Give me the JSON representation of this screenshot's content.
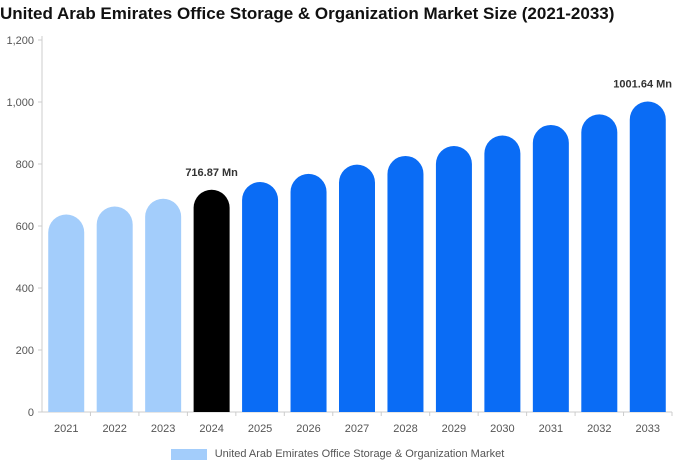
{
  "title": "United Arab Emirates Office Storage & Organization Market Size (2021-2033)",
  "colors": {
    "historical": "#a3cdfb",
    "current": "#000000",
    "forecast": "#0a6cf5",
    "axis": "#cccccc",
    "grid": "#eeeeee"
  },
  "legend_label": "United Arab Emirates Office Storage & Organization Market",
  "chart_data": {
    "type": "bar",
    "title": "United Arab Emirates Office Storage & Organization Market Size (2021-2033)",
    "categories": [
      "2021",
      "2022",
      "2023",
      "2024",
      "2025",
      "2026",
      "2027",
      "2028",
      "2029",
      "2030",
      "2031",
      "2032",
      "2033"
    ],
    "series": [
      {
        "name": "United Arab Emirates Office Storage & Organization Market",
        "values": [
          637,
          663,
          688,
          716.87,
          742,
          768,
          798,
          826,
          858,
          892,
          926,
          960,
          1001.64
        ],
        "bar_roles": [
          "historical",
          "historical",
          "historical",
          "current",
          "forecast",
          "forecast",
          "forecast",
          "forecast",
          "forecast",
          "forecast",
          "forecast",
          "forecast",
          "forecast"
        ]
      }
    ],
    "annotations": [
      {
        "category": "2024",
        "text": "716.87 Mn"
      },
      {
        "category": "2033",
        "text": "1001.64 Mn"
      }
    ],
    "yticks": [
      "0",
      "200",
      "400",
      "600",
      "800",
      "1,000",
      "1,200"
    ],
    "ylim": [
      0,
      1200
    ],
    "xlabel": "",
    "ylabel": "",
    "grid": false,
    "legend_position": "bottom"
  }
}
